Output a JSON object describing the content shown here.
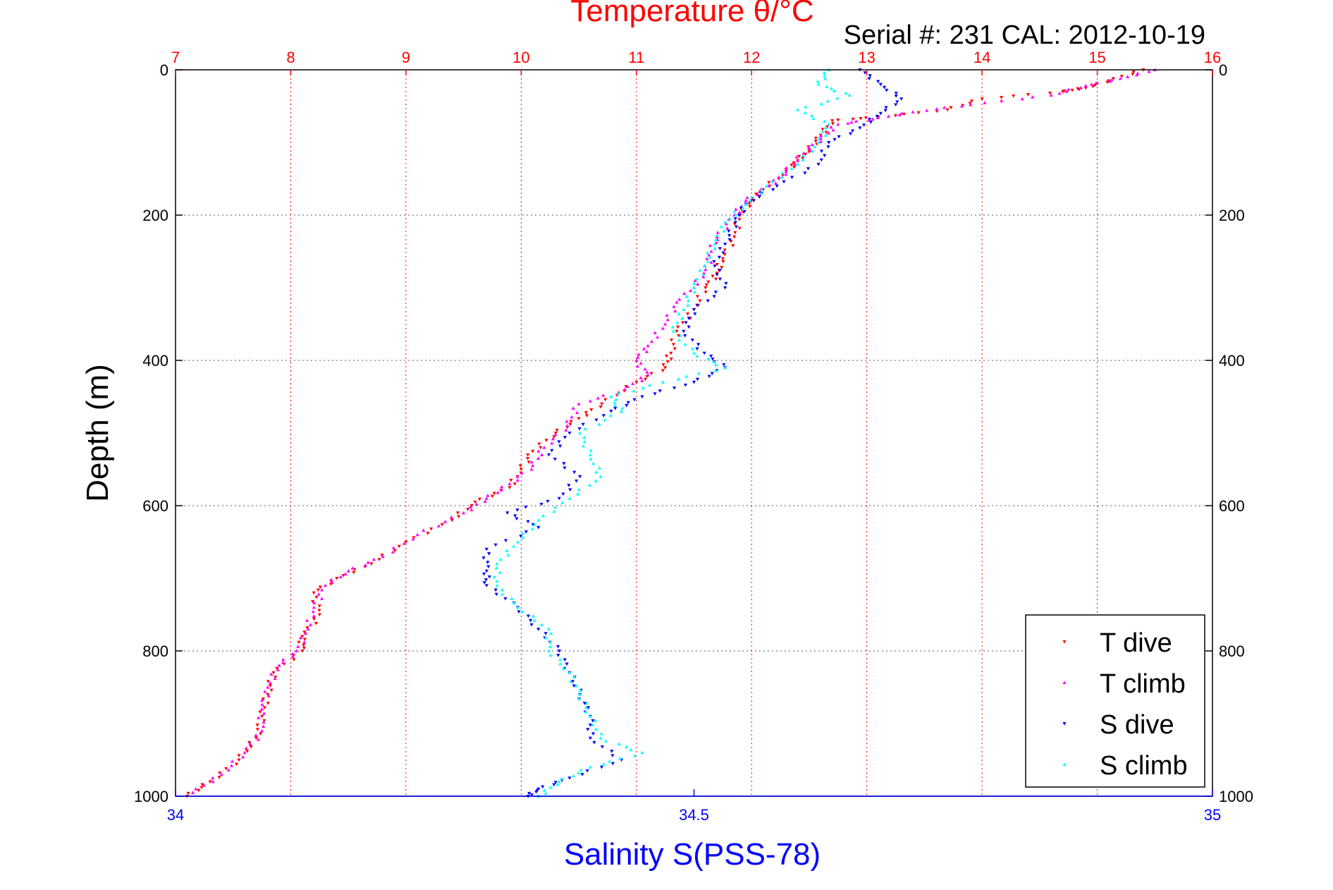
{
  "chart_data": {
    "type": "scatter",
    "title": "Temperature θ/°C",
    "subtitle": "Serial #: 231  CAL: 2012-10-19",
    "xlabel": "Salinity S(PSS-78)",
    "ylabel": "Depth (m)",
    "x_top": {
      "min": 7,
      "max": 16,
      "ticks": [
        7,
        8,
        9,
        10,
        11,
        12,
        13,
        14,
        15,
        16
      ],
      "grid": true,
      "color": "#ff0000"
    },
    "x_bottom": {
      "min": 34,
      "max": 35,
      "ticks": [
        34,
        34.5,
        35
      ],
      "tick_labels": [
        "34",
        "34.5",
        "35"
      ],
      "color": "#0000ff"
    },
    "y": {
      "min": 0,
      "max": 1000,
      "reversed": true,
      "ticks": [
        0,
        200,
        400,
        600,
        800,
        1000
      ],
      "grid": true
    },
    "legend": {
      "position": "bottom-right",
      "entries": [
        "T dive",
        "T climb",
        "S dive",
        "S climb"
      ]
    },
    "series": [
      {
        "name": "T dive",
        "axis": "top",
        "color": "#ff0000",
        "points": [
          [
            15.4,
            0
          ],
          [
            15.1,
            15
          ],
          [
            14.9,
            25
          ],
          [
            14.7,
            30
          ],
          [
            14.0,
            40
          ],
          [
            13.7,
            55
          ],
          [
            13.1,
            65
          ],
          [
            12.7,
            70
          ],
          [
            12.6,
            90
          ],
          [
            12.5,
            110
          ],
          [
            12.4,
            125
          ],
          [
            12.3,
            140
          ],
          [
            12.1,
            165
          ],
          [
            12.0,
            180
          ],
          [
            11.9,
            200
          ],
          [
            11.85,
            230
          ],
          [
            11.75,
            260
          ],
          [
            11.7,
            280
          ],
          [
            11.6,
            300
          ],
          [
            11.5,
            330
          ],
          [
            11.35,
            360
          ],
          [
            11.3,
            390
          ],
          [
            11.25,
            410
          ],
          [
            11.0,
            430
          ],
          [
            10.7,
            460
          ],
          [
            10.5,
            480
          ],
          [
            10.3,
            500
          ],
          [
            10.1,
            525
          ],
          [
            10.0,
            550
          ],
          [
            9.9,
            575
          ],
          [
            9.6,
            595
          ],
          [
            9.4,
            620
          ],
          [
            9.0,
            650
          ],
          [
            8.7,
            680
          ],
          [
            8.4,
            700
          ],
          [
            8.2,
            720
          ],
          [
            8.25,
            750
          ],
          [
            8.1,
            780
          ],
          [
            8.1,
            800
          ],
          [
            7.85,
            830
          ],
          [
            7.8,
            860
          ],
          [
            7.75,
            890
          ],
          [
            7.7,
            920
          ],
          [
            7.55,
            950
          ],
          [
            7.3,
            980
          ],
          [
            7.1,
            1000
          ]
        ]
      },
      {
        "name": "T climb",
        "axis": "top",
        "color": "#ff00ff",
        "points": [
          [
            15.5,
            0
          ],
          [
            15.2,
            12
          ],
          [
            14.9,
            22
          ],
          [
            14.6,
            35
          ],
          [
            13.9,
            48
          ],
          [
            13.4,
            58
          ],
          [
            13.05,
            68
          ],
          [
            12.75,
            75
          ],
          [
            12.6,
            95
          ],
          [
            12.45,
            115
          ],
          [
            12.3,
            140
          ],
          [
            12.15,
            160
          ],
          [
            11.95,
            180
          ],
          [
            11.85,
            200
          ],
          [
            11.7,
            230
          ],
          [
            11.65,
            250
          ],
          [
            11.6,
            275
          ],
          [
            11.5,
            300
          ],
          [
            11.35,
            320
          ],
          [
            11.25,
            350
          ],
          [
            11.1,
            380
          ],
          [
            11.0,
            400
          ],
          [
            11.1,
            420
          ],
          [
            10.9,
            440
          ],
          [
            10.5,
            460
          ],
          [
            10.4,
            490
          ],
          [
            10.2,
            520
          ],
          [
            10.1,
            545
          ],
          [
            9.9,
            570
          ],
          [
            9.7,
            590
          ],
          [
            9.5,
            610
          ],
          [
            9.1,
            640
          ],
          [
            8.8,
            670
          ],
          [
            8.5,
            690
          ],
          [
            8.3,
            710
          ],
          [
            8.2,
            740
          ],
          [
            8.15,
            770
          ],
          [
            8.05,
            800
          ],
          [
            7.9,
            820
          ],
          [
            7.8,
            850
          ],
          [
            7.75,
            880
          ],
          [
            7.75,
            910
          ],
          [
            7.6,
            940
          ],
          [
            7.4,
            970
          ],
          [
            7.15,
            995
          ]
        ]
      },
      {
        "name": "S dive",
        "axis": "bottom",
        "color": "#0000ff",
        "points": [
          [
            34.66,
            0
          ],
          [
            34.68,
            20
          ],
          [
            34.7,
            40
          ],
          [
            34.68,
            60
          ],
          [
            34.66,
            80
          ],
          [
            34.63,
            100
          ],
          [
            34.62,
            130
          ],
          [
            34.58,
            160
          ],
          [
            34.55,
            185
          ],
          [
            34.54,
            210
          ],
          [
            34.53,
            240
          ],
          [
            34.52,
            270
          ],
          [
            34.53,
            300
          ],
          [
            34.5,
            330
          ],
          [
            34.49,
            360
          ],
          [
            34.51,
            390
          ],
          [
            34.53,
            410
          ],
          [
            34.5,
            430
          ],
          [
            34.45,
            450
          ],
          [
            34.42,
            470
          ],
          [
            34.38,
            500
          ],
          [
            34.36,
            530
          ],
          [
            34.39,
            560
          ],
          [
            34.37,
            590
          ],
          [
            34.32,
            610
          ],
          [
            34.35,
            630
          ],
          [
            34.3,
            660
          ],
          [
            34.3,
            690
          ],
          [
            34.3,
            710
          ],
          [
            34.33,
            740
          ],
          [
            34.35,
            770
          ],
          [
            34.37,
            800
          ],
          [
            34.38,
            830
          ],
          [
            34.39,
            860
          ],
          [
            34.4,
            890
          ],
          [
            34.4,
            920
          ],
          [
            34.43,
            950
          ],
          [
            34.38,
            975
          ],
          [
            34.35,
            990
          ],
          [
            34.34,
            1000
          ]
        ]
      },
      {
        "name": "S climb",
        "axis": "bottom",
        "color": "#00ffff",
        "points": [
          [
            34.63,
            0
          ],
          [
            34.62,
            20
          ],
          [
            34.65,
            35
          ],
          [
            34.6,
            55
          ],
          [
            34.63,
            75
          ],
          [
            34.62,
            100
          ],
          [
            34.6,
            130
          ],
          [
            34.57,
            160
          ],
          [
            34.55,
            185
          ],
          [
            34.53,
            210
          ],
          [
            34.52,
            240
          ],
          [
            34.51,
            270
          ],
          [
            34.5,
            300
          ],
          [
            34.49,
            330
          ],
          [
            34.48,
            360
          ],
          [
            34.5,
            390
          ],
          [
            34.53,
            410
          ],
          [
            34.47,
            430
          ],
          [
            34.42,
            450
          ],
          [
            34.43,
            470
          ],
          [
            34.39,
            500
          ],
          [
            34.4,
            530
          ],
          [
            34.41,
            560
          ],
          [
            34.38,
            590
          ],
          [
            34.35,
            620
          ],
          [
            34.33,
            650
          ],
          [
            34.31,
            680
          ],
          [
            34.31,
            710
          ],
          [
            34.33,
            740
          ],
          [
            34.36,
            770
          ],
          [
            34.36,
            800
          ],
          [
            34.38,
            830
          ],
          [
            34.39,
            860
          ],
          [
            34.4,
            890
          ],
          [
            34.41,
            920
          ],
          [
            34.45,
            940
          ],
          [
            34.4,
            960
          ],
          [
            34.37,
            980
          ],
          [
            34.35,
            1000
          ]
        ]
      }
    ]
  }
}
